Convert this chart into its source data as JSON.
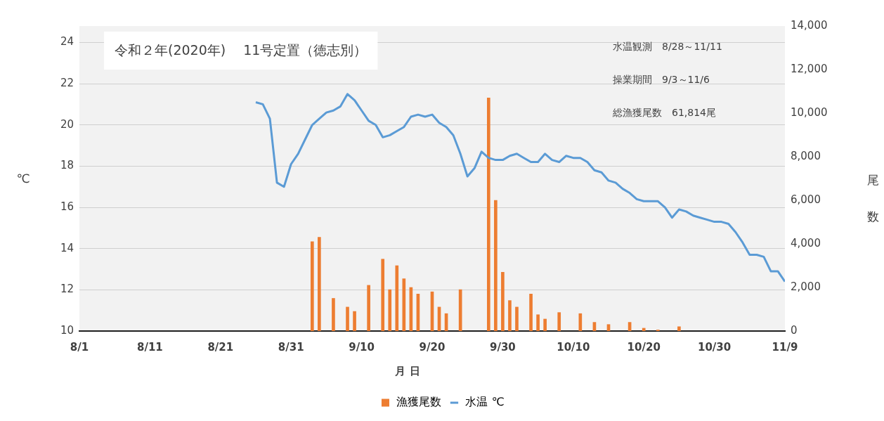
{
  "chart_data": {
    "type": "bar",
    "title": "令和２年(2020年)　 11号定置（徳志別）",
    "xlabel": "月 日",
    "ylabel": "℃",
    "y2label": "尾数",
    "annotations": [
      "水温観測　8/28～11/11",
      "操業期間　9/3～11/6",
      "総漁獲尾数　61,814尾"
    ],
    "xlim": [
      "--08-01",
      "--11-09"
    ],
    "xticks": [
      {
        "value": "--08-01",
        "label": "8/1"
      },
      {
        "value": "--08-11",
        "label": "8/11"
      },
      {
        "value": "--08-21",
        "label": "8/21"
      },
      {
        "value": "--08-31",
        "label": "8/31"
      },
      {
        "value": "--09-10",
        "label": "9/10"
      },
      {
        "value": "--09-20",
        "label": "9/20"
      },
      {
        "value": "--09-30",
        "label": "9/30"
      },
      {
        "value": "--10-10",
        "label": "10/10"
      },
      {
        "value": "--10-20",
        "label": "10/20"
      },
      {
        "value": "--10-30",
        "label": "10/30"
      },
      {
        "value": "--11-09",
        "label": "11/9"
      }
    ],
    "ylim": [
      10,
      24.8
    ],
    "yticks": [
      10,
      12,
      14,
      16,
      18,
      20,
      22,
      24
    ],
    "y2lim": [
      0,
      14000
    ],
    "y2ticks": [
      {
        "value": 0,
        "label": "0"
      },
      {
        "value": 2000,
        "label": "2,000"
      },
      {
        "value": 4000,
        "label": "4,000"
      },
      {
        "value": 6000,
        "label": "6,000"
      },
      {
        "value": 8000,
        "label": "8,000"
      },
      {
        "value": 10000,
        "label": "10,000"
      },
      {
        "value": 12000,
        "label": "12,000"
      },
      {
        "value": 14000,
        "label": "14,000"
      }
    ],
    "grid": "y",
    "legend": "bottom",
    "series": [
      {
        "name": "漁獲尾数",
        "axis": "y2",
        "color": "#ed7d31",
        "x": [
          "--09-03",
          "--09-04",
          "--09-06",
          "--09-08",
          "--09-09",
          "--09-11",
          "--09-13",
          "--09-14",
          "--09-15",
          "--09-16",
          "--09-17",
          "--09-18",
          "--09-20",
          "--09-21",
          "--09-22",
          "--09-24",
          "--09-28",
          "--09-29",
          "--09-30",
          "--10-01",
          "--10-02",
          "--10-04",
          "--10-05",
          "--10-06",
          "--10-08",
          "--10-11",
          "--10-13",
          "--10-15",
          "--10-18",
          "--10-20",
          "--10-22",
          "--10-25"
        ],
        "values": [
          4100,
          4300,
          1500,
          1100,
          900,
          2100,
          3300,
          1900,
          3000,
          2400,
          2000,
          1700,
          1800,
          1100,
          800,
          1900,
          10700,
          6000,
          2700,
          1400,
          1100,
          1700,
          750,
          550,
          850,
          800,
          400,
          300,
          400,
          130,
          50,
          200
        ]
      },
      {
        "name": "水温 ℃",
        "type": "line",
        "axis": "y",
        "color": "#5b9bd5",
        "marker": "none",
        "x": [
          "--08-26",
          "--08-27",
          "--08-28",
          "--08-29",
          "--08-30",
          "--08-31",
          "--09-01",
          "--09-02",
          "--09-03",
          "--09-04",
          "--09-05",
          "--09-06",
          "--09-07",
          "--09-08",
          "--09-09",
          "--09-10",
          "--09-11",
          "--09-12",
          "--09-13",
          "--09-14",
          "--09-15",
          "--09-16",
          "--09-17",
          "--09-18",
          "--09-19",
          "--09-20",
          "--09-21",
          "--09-22",
          "--09-23",
          "--09-24",
          "--09-25",
          "--09-26",
          "--09-27",
          "--09-28",
          "--09-29",
          "--09-30",
          "--10-01",
          "--10-02",
          "--10-03",
          "--10-04",
          "--10-05",
          "--10-06",
          "--10-07",
          "--10-08",
          "--10-09",
          "--10-10",
          "--10-11",
          "--10-12",
          "--10-13",
          "--10-14",
          "--10-15",
          "--10-16",
          "--10-17",
          "--10-18",
          "--10-19",
          "--10-20",
          "--10-21",
          "--10-22",
          "--10-23",
          "--10-24",
          "--10-25",
          "--10-26",
          "--10-27",
          "--10-28",
          "--10-29",
          "--10-30",
          "--10-31",
          "--11-01",
          "--11-02",
          "--11-03",
          "--11-04",
          "--11-05",
          "--11-06",
          "--11-07",
          "--11-08",
          "--11-09"
        ],
        "values": [
          21.1,
          21.0,
          20.3,
          17.2,
          17.0,
          18.1,
          18.6,
          19.3,
          20.0,
          20.3,
          20.6,
          20.7,
          20.9,
          21.5,
          21.2,
          20.7,
          20.2,
          20.0,
          19.4,
          19.5,
          19.7,
          19.9,
          20.4,
          20.5,
          20.4,
          20.5,
          20.1,
          19.9,
          19.5,
          18.6,
          17.5,
          17.9,
          18.7,
          18.4,
          18.3,
          18.3,
          18.5,
          18.6,
          18.4,
          18.2,
          18.2,
          18.6,
          18.3,
          18.2,
          18.5,
          18.4,
          18.4,
          18.2,
          17.8,
          17.7,
          17.3,
          17.2,
          16.9,
          16.7,
          16.4,
          16.3,
          16.3,
          16.3,
          16.0,
          15.5,
          15.9,
          15.8,
          15.6,
          15.5,
          15.4,
          15.3,
          15.3,
          15.2,
          14.8,
          14.3,
          13.7,
          13.7,
          13.6,
          12.9,
          12.9,
          12.4
        ]
      }
    ]
  }
}
